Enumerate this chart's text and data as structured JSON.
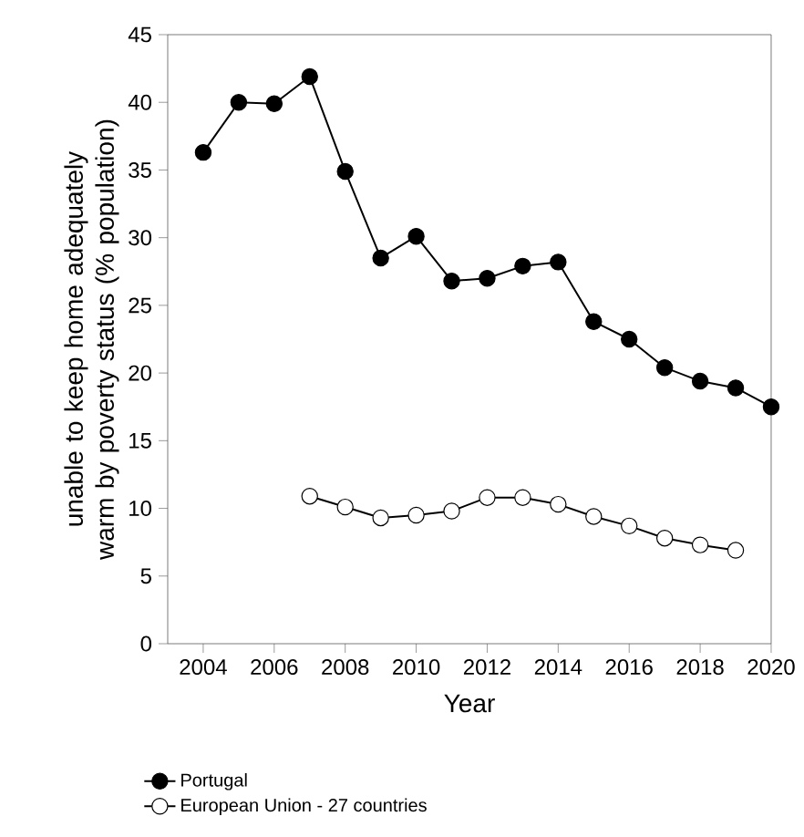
{
  "chart_data": {
    "type": "line",
    "xlabel": "Year",
    "ylabel": "unable to keep home adequately warm by poverty status (% population)",
    "xlim": [
      2003,
      2020
    ],
    "xticks": [
      2004,
      2006,
      2008,
      2010,
      2012,
      2014,
      2016,
      2018,
      2020
    ],
    "ylim": [
      0,
      45
    ],
    "yticks": [
      0,
      5,
      10,
      15,
      20,
      25,
      30,
      35,
      40,
      45
    ],
    "grid": false,
    "legend": "bottom",
    "marker": "circle",
    "line_style": "solid",
    "series": [
      {
        "name": "Portugal",
        "color": "#000000",
        "x": [
          2004,
          2005,
          2006,
          2007,
          2008,
          2009,
          2010,
          2011,
          2012,
          2013,
          2014,
          2015,
          2016,
          2017,
          2018,
          2019,
          2020
        ],
        "values": [
          36.3,
          40.0,
          39.9,
          41.9,
          34.9,
          28.5,
          30.1,
          26.8,
          27.0,
          27.9,
          28.2,
          23.8,
          22.5,
          20.4,
          19.4,
          18.9,
          17.5
        ]
      },
      {
        "name": "European Union - 27 countries",
        "color": "#000000",
        "x": [
          2007,
          2008,
          2009,
          2010,
          2011,
          2012,
          2013,
          2014,
          2015,
          2016,
          2017,
          2018,
          2019
        ],
        "values": [
          10.9,
          10.1,
          9.3,
          9.5,
          9.8,
          10.8,
          10.8,
          10.3,
          9.4,
          8.7,
          7.8,
          7.3,
          6.9
        ]
      }
    ]
  }
}
